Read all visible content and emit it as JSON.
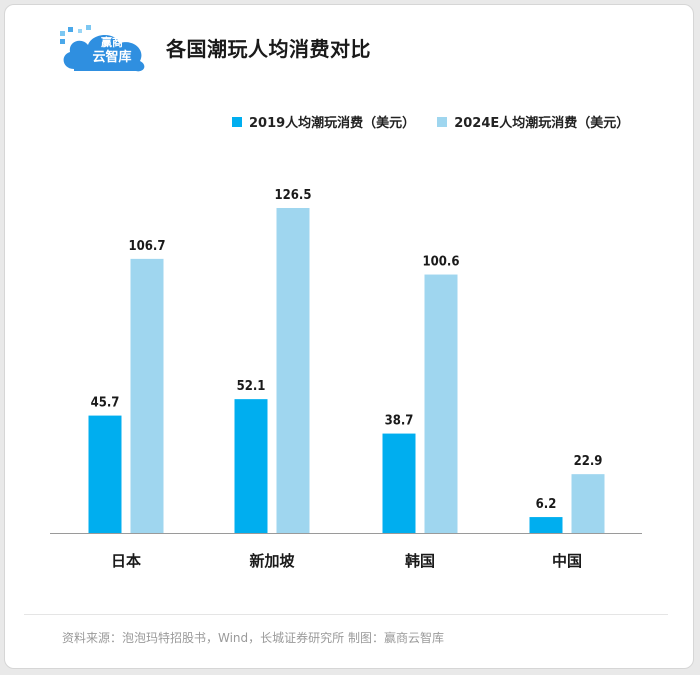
{
  "header": {
    "logo_text_line1": "赢商",
    "logo_text_line2": "云智库",
    "title": "各国潮玩人均消费对比"
  },
  "colors": {
    "series_2019": "#00aeef",
    "series_2024": "#9fd6ef",
    "logo_blue": "#2f8fe0"
  },
  "chart_data": {
    "type": "bar",
    "title": "各国潮玩人均消费对比",
    "categories": [
      "日本",
      "新加坡",
      "韩国",
      "中国"
    ],
    "series": [
      {
        "name": "2019人均潮玩消费（美元）",
        "values": [
          45.7,
          52.1,
          38.7,
          6.2
        ]
      },
      {
        "name": "2024E人均潮玩消费（美元）",
        "values": [
          106.7,
          126.5,
          100.6,
          22.9
        ]
      }
    ],
    "value_labels": [
      [
        "45.7",
        "52.1",
        "38.7",
        "6.2"
      ],
      [
        "106.7",
        "126.5",
        "100.6",
        "22.9"
      ]
    ],
    "ylim": [
      0,
      130
    ],
    "grid": false,
    "legend": "top-right",
    "xlabel": "",
    "ylabel": ""
  },
  "footer": {
    "source": "资料来源：泡泡玛特招股书，Wind，长城证券研究所 制图：赢商云智库"
  }
}
